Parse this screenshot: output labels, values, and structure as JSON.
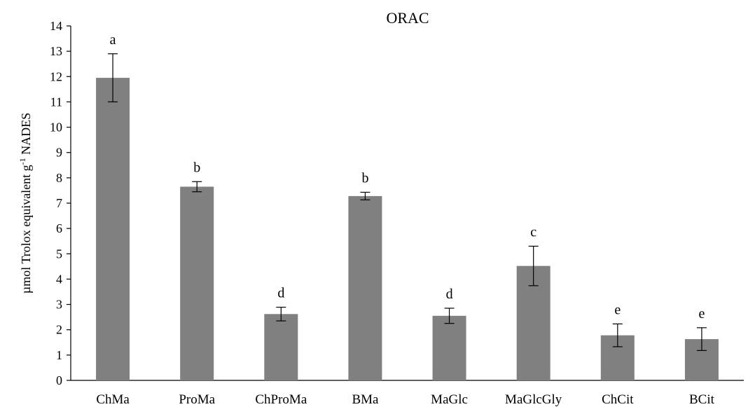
{
  "chart_data": {
    "type": "bar",
    "title": "ORAC",
    "ylabel_main": "µmol Trolox equivalent g",
    "ylabel_sup": "-1",
    "ylabel_tail": " NADES",
    "xlabel": "",
    "ylim": [
      0,
      14
    ],
    "yticks": [
      0,
      1,
      2,
      3,
      4,
      5,
      6,
      7,
      8,
      9,
      10,
      11,
      12,
      13,
      14
    ],
    "categories": [
      "ChMa",
      "ProMa",
      "ChProMa",
      "BMa",
      "MaGlc",
      "MaGlcGly",
      "ChCit",
      "BCit"
    ],
    "values": [
      11.95,
      7.65,
      2.62,
      7.28,
      2.55,
      4.52,
      1.78,
      1.63
    ],
    "errors": [
      0.95,
      0.2,
      0.27,
      0.15,
      0.3,
      0.78,
      0.45,
      0.45
    ],
    "significance": [
      "a",
      "b",
      "d",
      "b",
      "d",
      "c",
      "e",
      "e"
    ],
    "bar_color": "#808080",
    "grid": false,
    "legend": "none"
  }
}
